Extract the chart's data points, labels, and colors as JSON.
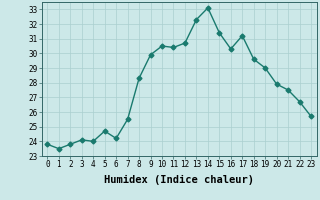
{
  "x": [
    0,
    1,
    2,
    3,
    4,
    5,
    6,
    7,
    8,
    9,
    10,
    11,
    12,
    13,
    14,
    15,
    16,
    17,
    18,
    19,
    20,
    21,
    22,
    23
  ],
  "y": [
    23.8,
    23.5,
    23.8,
    24.1,
    24.0,
    24.7,
    24.2,
    25.5,
    28.3,
    29.9,
    30.5,
    30.4,
    30.7,
    32.3,
    33.1,
    31.4,
    30.3,
    31.2,
    29.6,
    29.0,
    27.9,
    27.5,
    26.7,
    25.7
  ],
  "line_color": "#1a7a6e",
  "marker": "D",
  "markersize": 2.5,
  "linewidth": 1.0,
  "bg_color": "#cce8e8",
  "grid_color": "#aacfcf",
  "xlabel": "Humidex (Indice chaleur)",
  "xlim": [
    -0.5,
    23.5
  ],
  "ylim": [
    23,
    33.5
  ],
  "yticks": [
    23,
    24,
    25,
    26,
    27,
    28,
    29,
    30,
    31,
    32,
    33
  ],
  "xticks": [
    0,
    1,
    2,
    3,
    4,
    5,
    6,
    7,
    8,
    9,
    10,
    11,
    12,
    13,
    14,
    15,
    16,
    17,
    18,
    19,
    20,
    21,
    22,
    23
  ],
  "tick_fontsize": 5.5,
  "xlabel_fontsize": 7.5,
  "xlabel_fontweight": "bold"
}
